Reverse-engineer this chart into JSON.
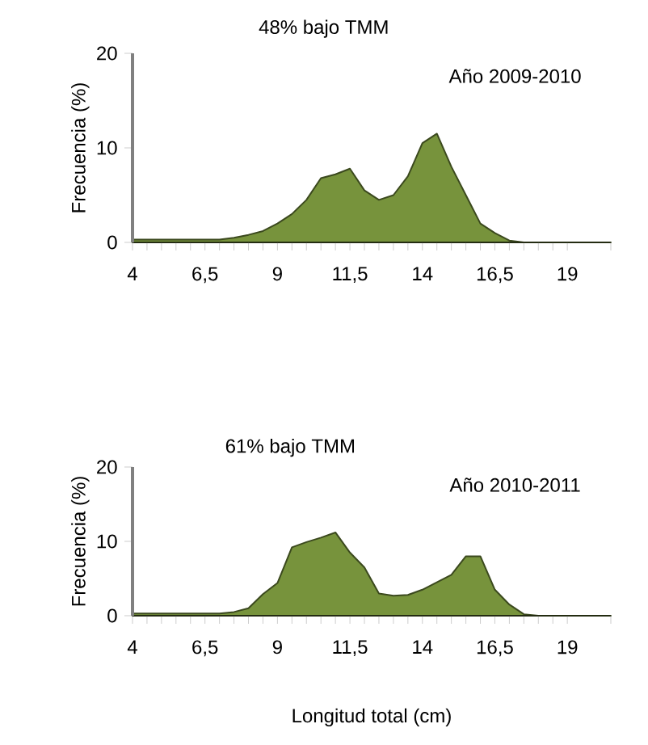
{
  "chart_data": [
    {
      "type": "area",
      "ylabel": "Frecuencia (%)",
      "annotations": [
        "48% bajo TMM",
        "Año 2009-2010"
      ],
      "x": [
        4,
        4.5,
        5,
        5.5,
        6,
        6.5,
        7,
        7.5,
        8,
        8.5,
        9,
        9.5,
        10,
        10.5,
        11,
        11.5,
        12,
        12.5,
        13,
        13.5,
        14,
        14.5,
        15,
        15.5,
        16,
        16.5,
        17,
        17.5,
        18,
        18.5,
        19,
        19.5,
        20,
        20.5
      ],
      "series": [
        {
          "color": "#77933c",
          "values": [
            0.3,
            0.3,
            0.3,
            0.3,
            0.3,
            0.3,
            0.3,
            0.5,
            0.8,
            1.2,
            2.0,
            3.0,
            4.5,
            6.8,
            7.2,
            7.8,
            5.5,
            4.5,
            5.0,
            7.0,
            10.5,
            11.5,
            8.0,
            5.0,
            2.0,
            1.0,
            0.2,
            0,
            0,
            0,
            0,
            0,
            0,
            0
          ]
        }
      ],
      "xlim": [
        4,
        20.5
      ],
      "xticks": [
        4,
        {
          "value": 6.5,
          "label": "6,5"
        },
        9,
        {
          "value": 11.5,
          "label": "11,5"
        },
        14,
        {
          "value": 16.5,
          "label": "16,5"
        },
        19
      ],
      "ylim": [
        0,
        20
      ],
      "yticks": [
        0,
        10,
        20
      ]
    },
    {
      "type": "area",
      "xlabel": "Longitud  total (cm)",
      "ylabel": "Frecuencia (%)",
      "annotations": [
        "61% bajo TMM",
        "Año 2010-2011"
      ],
      "x": [
        4,
        4.5,
        5,
        5.5,
        6,
        6.5,
        7,
        7.5,
        8,
        8.5,
        9,
        9.5,
        10,
        10.5,
        11,
        11.5,
        12,
        12.5,
        13,
        13.5,
        14,
        14.5,
        15,
        15.5,
        16,
        16.5,
        17,
        17.5,
        18,
        18.5,
        19,
        19.5,
        20,
        20.5
      ],
      "series": [
        {
          "color": "#77933c",
          "values": [
            0.3,
            0.3,
            0.3,
            0.3,
            0.3,
            0.3,
            0.3,
            0.5,
            1.0,
            2.9,
            4.4,
            9.2,
            9.9,
            10.5,
            11.2,
            8.5,
            6.5,
            3.0,
            2.7,
            2.8,
            3.5,
            4.5,
            5.5,
            8.0,
            8.0,
            3.5,
            1.5,
            0.2,
            0,
            0,
            0,
            0,
            0,
            0
          ]
        }
      ],
      "xlim": [
        4,
        20.5
      ],
      "xticks": [
        4,
        {
          "value": 6.5,
          "label": "6,5"
        },
        9,
        {
          "value": 11.5,
          "label": "11,5"
        },
        14,
        {
          "value": 16.5,
          "label": "16,5"
        },
        19
      ],
      "ylim": [
        0,
        20
      ],
      "yticks": [
        0,
        10,
        20
      ]
    }
  ]
}
